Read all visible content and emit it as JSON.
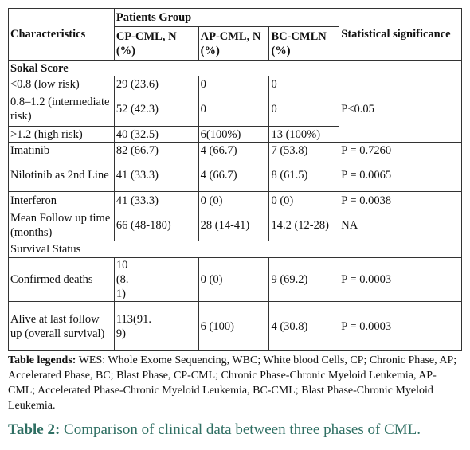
{
  "table": {
    "header": {
      "characteristics": "Characteristics",
      "patients_group": "Patients Group",
      "columns": [
        "CP-CML, N (%)",
        "AP-CML, N (%)",
        "BC-CMLN (%)"
      ],
      "significance": "Statistical significance"
    },
    "sections": [
      "Sokal Score",
      "Survival Status"
    ],
    "rows": [
      [
        "<0.8 (low risk)",
        "29 (23.6)",
        "0",
        "0",
        "P<0.05"
      ],
      [
        "0.8–1.2 (intermediate risk)",
        "52 (42.3)",
        "0",
        "0"
      ],
      [
        ">1.2 (high risk)",
        "40 (32.5)",
        "6(100%)",
        "13 (100%)"
      ],
      [
        "Imatinib",
        "82 (66.7)",
        "4 (66.7)",
        "7 (53.8)",
        "P = 0.7260"
      ],
      [
        "Nilotinib as 2nd Line",
        "41 (33.3)",
        "4 (66.7)",
        "8 (61.5)",
        "P = 0.0065"
      ],
      [
        "Interferon",
        "41 (33.3)",
        "0 (0)",
        "0 (0)",
        "P = 0.0038"
      ],
      [
        "Mean Follow up time (months)",
        "66 (48-180)",
        "28 (14-41)",
        "14.2 (12-28)",
        "NA"
      ],
      [
        "Confirmed deaths",
        "10 (8.1)",
        "0 (0)",
        "9 (69.2)",
        "P = 0.0003"
      ],
      [
        "Alive at last follow up (overall survival)",
        "113(91.9)",
        "6 (100)",
        "4 (30.8)",
        "P = 0.0003"
      ]
    ]
  },
  "legend": {
    "label": "Table legends:",
    "text": "WES: Whole Exome Sequencing, WBC; White blood Cells, CP; Chronic Phase, AP; Accelerated Phase, BC; Blast Phase, CP-CML; Chronic Phase-Chronic Myeloid Leukemia, AP-CML; Accelerated Phase-Chronic Myeloid Leukemia, BC-CML; Blast Phase-Chronic Myeloid Leukemia."
  },
  "caption": {
    "label": "Table 2:",
    "text": "Comparison of clinical data between three phases of CML."
  }
}
